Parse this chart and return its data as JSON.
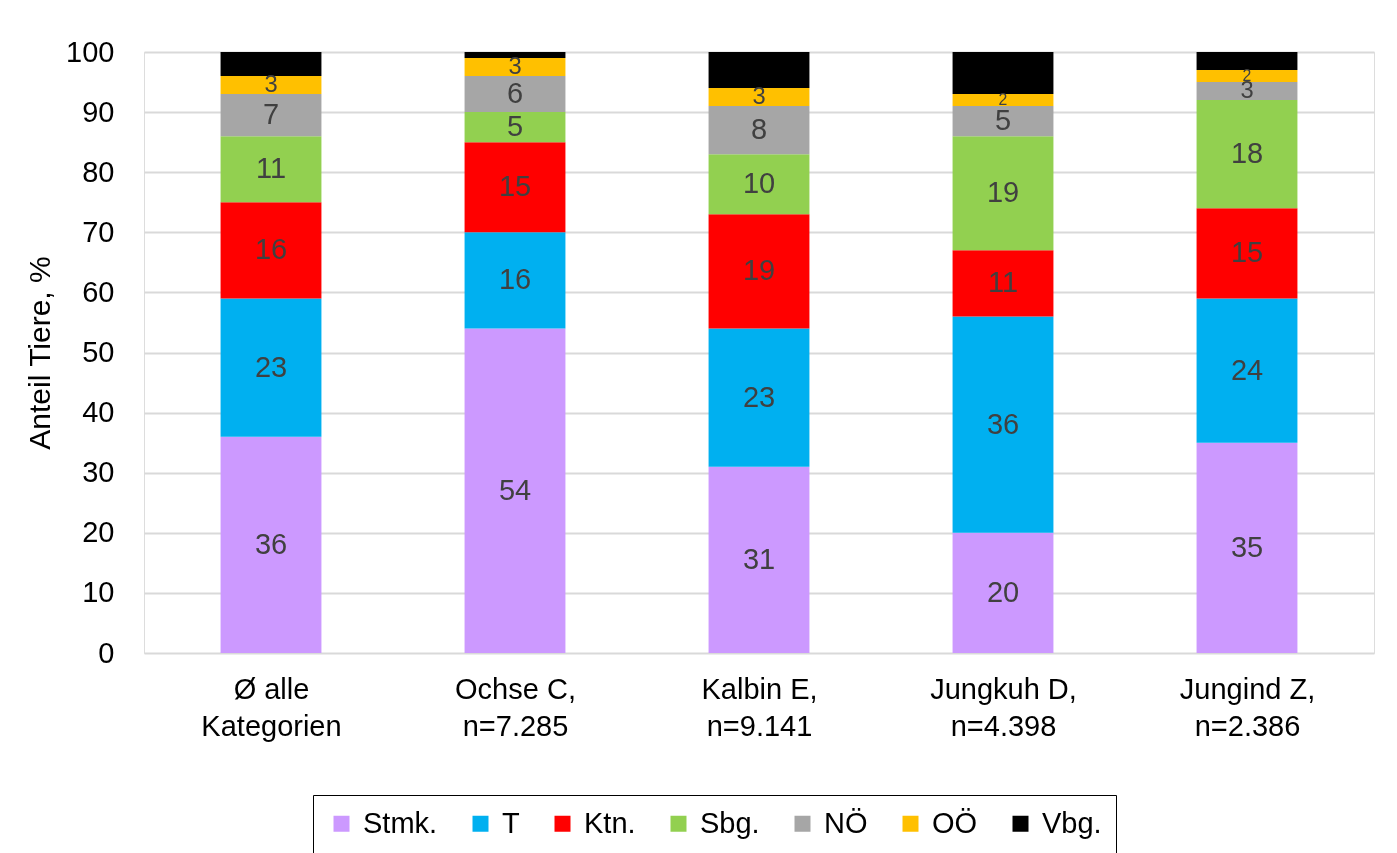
{
  "chart_data": {
    "type": "bar",
    "stacked": true,
    "ylabel": "Anteil Tiere, %",
    "categories": [
      "Ø alle\nKategorien",
      "Ochse C,\nn=7.285",
      "Kalbin E,\nn=9.141",
      "Jungkuh D,\nn=4.398",
      "Jungind Z,\nn=2.386"
    ],
    "series": [
      {
        "name": "Stmk.",
        "color": "#cc99ff",
        "values": [
          36,
          54,
          31,
          20,
          35
        ],
        "value_labels": [
          "36",
          "54",
          "31",
          "20",
          "35"
        ]
      },
      {
        "name": "T",
        "color": "#00b0f0",
        "values": [
          23,
          16,
          23,
          36,
          24
        ],
        "value_labels": [
          "23",
          "16",
          "23",
          "36",
          "24"
        ]
      },
      {
        "name": "Ktn.",
        "color": "#ff0000",
        "values": [
          16,
          15,
          19,
          11,
          15
        ],
        "value_labels": [
          "16",
          "15",
          "19",
          "11",
          "15"
        ]
      },
      {
        "name": "Sbg.",
        "color": "#92d050",
        "values": [
          11,
          5,
          10,
          19,
          18
        ],
        "value_labels": [
          "11",
          "5",
          "10",
          "19",
          "18"
        ]
      },
      {
        "name": "NÖ",
        "color": "#a6a6a6",
        "values": [
          7,
          6,
          8,
          5,
          3
        ],
        "value_labels": [
          "7",
          "6",
          "8",
          "5",
          "3"
        ]
      },
      {
        "name": "OÖ",
        "color": "#ffc000",
        "values": [
          3,
          3,
          3,
          2,
          2
        ],
        "value_labels": [
          "3",
          "3",
          "3",
          "2",
          "2"
        ]
      },
      {
        "name": "Vbg.",
        "color": "#000000",
        "values": [
          4,
          1,
          6,
          7,
          3
        ]
      }
    ],
    "ylim": [
      0,
      100
    ],
    "yticks": [
      0,
      10,
      20,
      30,
      40,
      50,
      60,
      70,
      80,
      90,
      100
    ],
    "grid": "y",
    "legend": "bottom"
  }
}
